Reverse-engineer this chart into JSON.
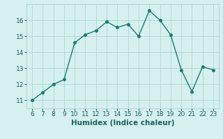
{
  "x": [
    6,
    7,
    8,
    9,
    10,
    11,
    12,
    13,
    14,
    15,
    16,
    17,
    18,
    19,
    20,
    21,
    22,
    23
  ],
  "y": [
    11.0,
    11.5,
    12.0,
    12.3,
    14.6,
    15.1,
    15.35,
    15.9,
    15.55,
    15.75,
    15.0,
    16.6,
    16.0,
    15.1,
    12.9,
    11.55,
    13.1,
    12.9
  ],
  "line_color": "#1a7a6e",
  "marker_color": "#1a7a6e",
  "bg_color": "#d6f0f0",
  "grid_color": "#b0d8d8",
  "xlabel": "Humidex (Indice chaleur)",
  "xlabel_fontsize": 7.5,
  "tick_fontsize": 6.5,
  "xlim": [
    5.5,
    23.5
  ],
  "ylim": [
    10.5,
    17.0
  ],
  "yticks": [
    11,
    12,
    13,
    14,
    15,
    16
  ],
  "xticks": [
    6,
    7,
    8,
    9,
    10,
    11,
    12,
    13,
    14,
    15,
    16,
    17,
    18,
    19,
    20,
    21,
    22,
    23
  ]
}
